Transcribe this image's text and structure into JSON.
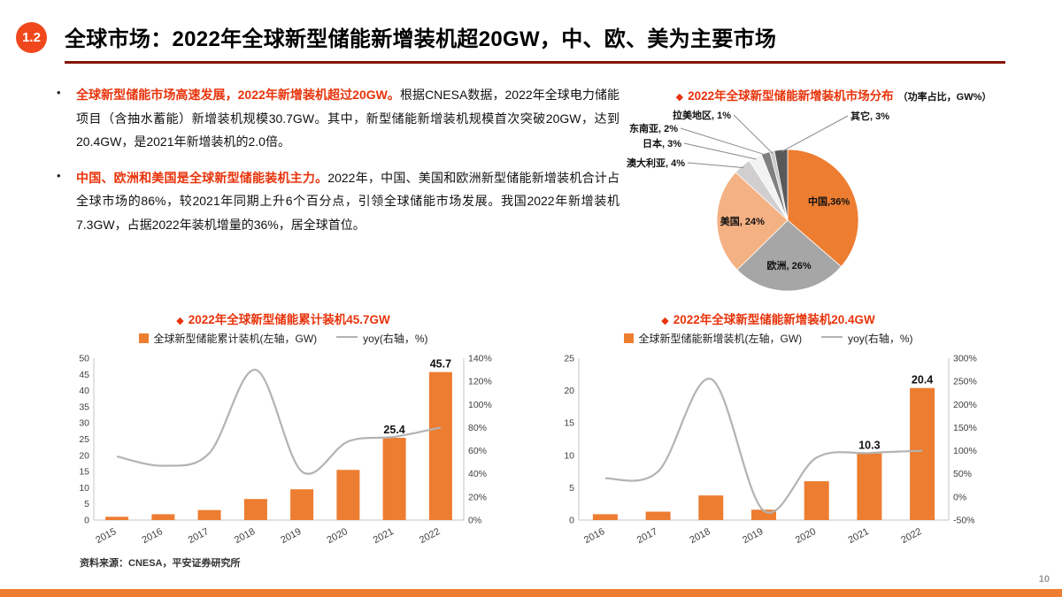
{
  "page": {
    "badge": "1.2",
    "title": "全球市场：2022年全球新型储能新增装机超20GW，中、欧、美为主要市场",
    "bullet_marker": "•",
    "diamond": "◆",
    "source": "资料来源：CNESA，平安证券研究所",
    "page_number": "10",
    "accent_red": "#e8340c",
    "accent_orange": "#ED7D31",
    "underline_color": "#871408"
  },
  "bullets": [
    {
      "lead": "全球新型储能市场高速发展，2022年新增装机超过20GW。",
      "rest": "根据CNESA数据，2022年全球电力储能项目（含抽水蓄能）新增装机规模30.7GW。其中，新型储能新增装机规模首次突破20GW，达到20.4GW，是2021年新增装机的2.0倍。"
    },
    {
      "lead": "中国、欧洲和美国是全球新型储能装机主力。",
      "rest": "2022年，中国、美国和欧洲新型储能新增装机合计占全球市场的86%，较2021年同期上升6个百分点，引领全球储能市场发展。我国2022年新增装机7.3GW，占据2022年装机增量的36%，居全球首位。"
    }
  ],
  "chart_data": [
    {
      "type": "pie",
      "title": "2022年全球新型储能新增装机市场分布",
      "subtitle": "（功率占比，GW%）",
      "names": [
        "中国",
        "欧洲",
        "美国",
        "澳大利亚",
        "日本",
        "东南亚",
        "拉美地区",
        "其它"
      ],
      "labels": [
        "中国,36%",
        "欧洲, 26%",
        "美国, 24%",
        "澳大利亚, 4%",
        "日本, 3%",
        "东南亚, 2%",
        "拉美地区, 1%",
        "其它, 3%"
      ],
      "values": [
        36,
        26,
        24,
        4,
        3,
        2,
        1,
        3
      ],
      "colors": [
        "#ED7D31",
        "#A6A6A6",
        "#F4B183",
        "#D0CECE",
        "#F2F2F2",
        "#808080",
        "#C9C9C9",
        "#595959"
      ]
    },
    {
      "type": "combo_bar_line",
      "title": "2022年全球新型储能累计装机45.7GW",
      "legend_bar": "全球新型储能累计装机(左轴，GW)",
      "legend_line": "yoy(右轴，%)",
      "categories": [
        "2015",
        "2016",
        "2017",
        "2018",
        "2019",
        "2020",
        "2021",
        "2022"
      ],
      "bars": [
        1.0,
        1.8,
        3.1,
        6.5,
        9.5,
        15.5,
        25.4,
        45.7
      ],
      "bar_labels": [
        null,
        null,
        null,
        null,
        null,
        null,
        "25.4",
        "45.7"
      ],
      "line_name": "yoy",
      "line": [
        55,
        47,
        58,
        130,
        42,
        68,
        72,
        80
      ],
      "y_left": {
        "min": 0,
        "max": 50,
        "step": 5
      },
      "y_right": {
        "min": 0,
        "max": 140,
        "step": 20,
        "suffix": "%"
      },
      "bar_color": "#ED7D31",
      "line_color": "#b3b3b3"
    },
    {
      "type": "combo_bar_line",
      "title": "2022年全球新型储能新增装机20.4GW",
      "legend_bar": "全球新型储能新增装机(左轴，GW)",
      "legend_line": "yoy(右轴，%)",
      "categories": [
        "2016",
        "2017",
        "2018",
        "2019",
        "2020",
        "2021",
        "2022"
      ],
      "bars": [
        0.9,
        1.3,
        3.8,
        1.6,
        6.0,
        10.3,
        20.4
      ],
      "bar_labels": [
        null,
        null,
        null,
        null,
        null,
        "10.3",
        "20.4"
      ],
      "line_name": "yoy",
      "line": [
        40,
        55,
        255,
        -30,
        85,
        95,
        100
      ],
      "y_left": {
        "min": 0,
        "max": 25,
        "step": 5
      },
      "y_right": {
        "min": -50,
        "max": 300,
        "step": 50,
        "suffix": "%"
      },
      "bar_color": "#ED7D31",
      "line_color": "#b3b3b3"
    }
  ]
}
